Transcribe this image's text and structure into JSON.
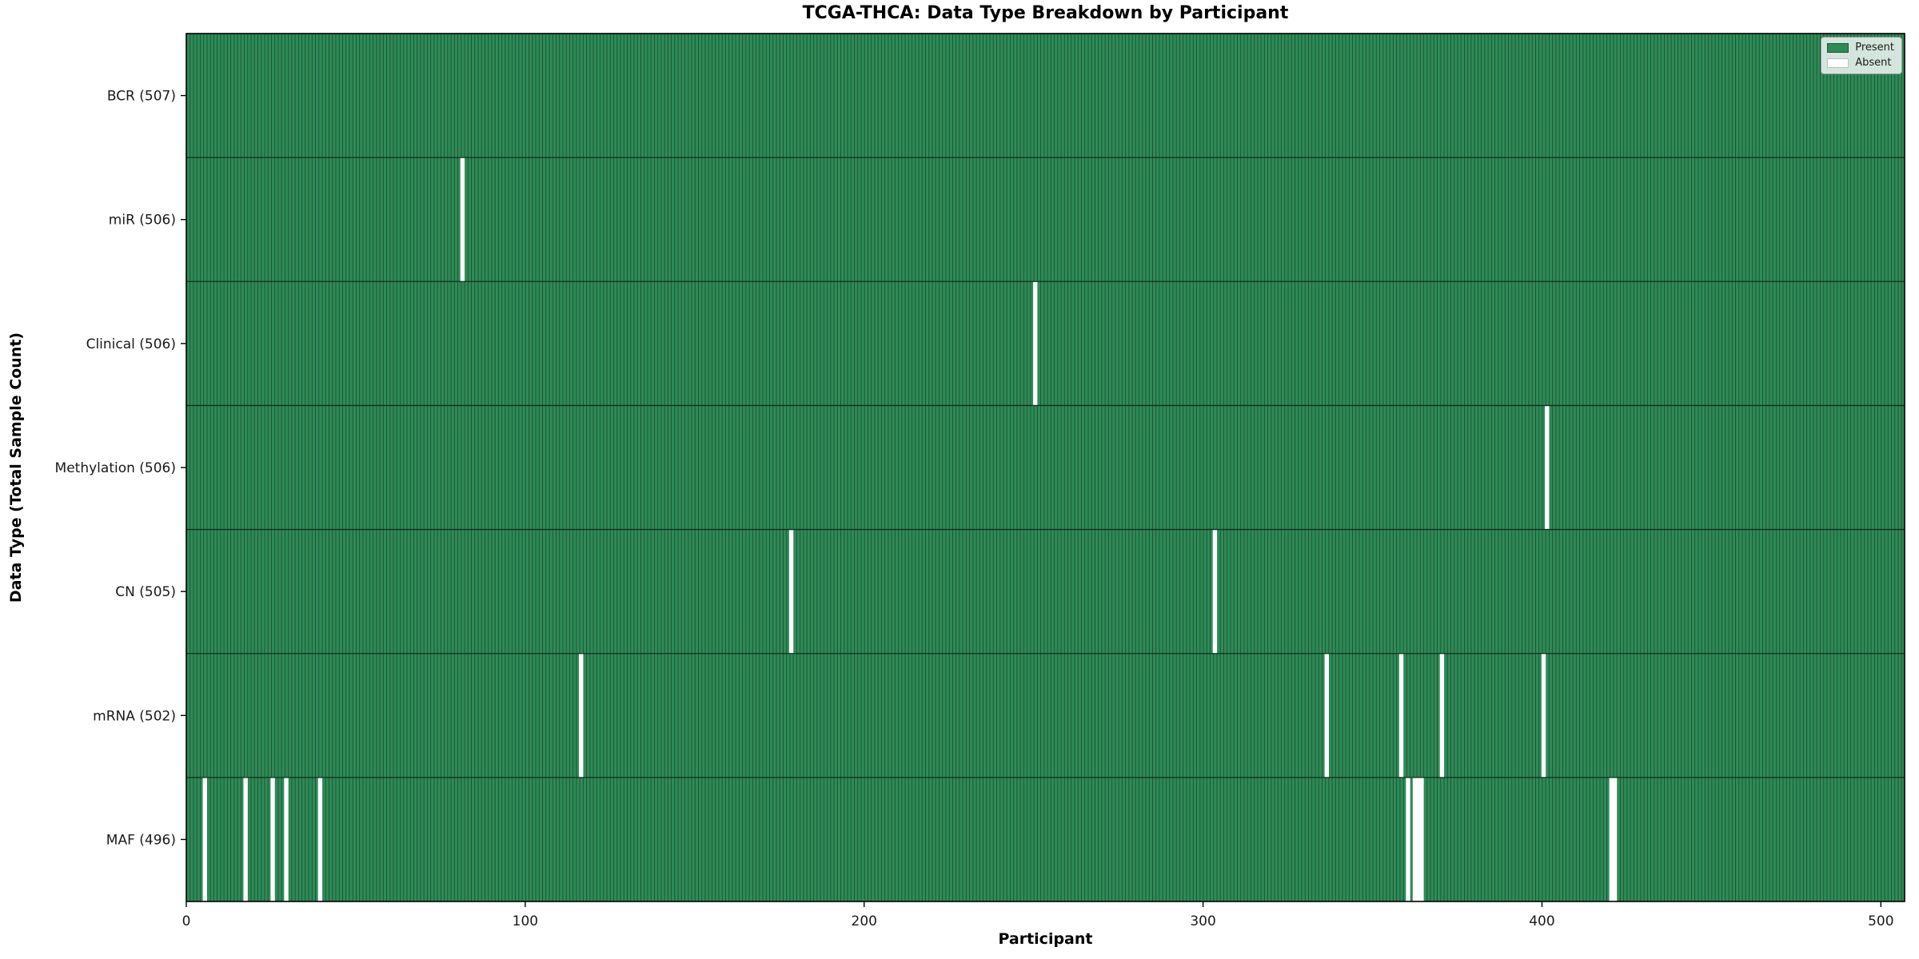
{
  "chart_data": {
    "type": "heatmap",
    "title": "TCGA-THCA: Data Type Breakdown by Participant",
    "xlabel": "Participant",
    "ylabel": "Data Type (Total Sample Count)",
    "n_participants": 507,
    "xlim": [
      0,
      507
    ],
    "x_ticks": [
      0,
      100,
      200,
      300,
      400,
      500
    ],
    "grid": false,
    "legend_position": "upper right",
    "legend": [
      {
        "label": "Present",
        "color": "#2e8b57"
      },
      {
        "label": "Absent",
        "color": "#ffffff"
      }
    ],
    "rows": [
      {
        "label": "BCR (507)",
        "data_type": "BCR",
        "total": 507,
        "absent_participants": []
      },
      {
        "label": "miR (506)",
        "data_type": "miR",
        "total": 506,
        "absent_participants": [
          81
        ]
      },
      {
        "label": "Clinical (506)",
        "data_type": "Clinical",
        "total": 506,
        "absent_participants": [
          250
        ]
      },
      {
        "label": "Methylation (506)",
        "data_type": "Methylation",
        "total": 506,
        "absent_participants": [
          401
        ]
      },
      {
        "label": "CN (505)",
        "data_type": "CN",
        "total": 505,
        "absent_participants": [
          178,
          303
        ]
      },
      {
        "label": "mRNA (502)",
        "data_type": "mRNA",
        "total": 502,
        "absent_participants": [
          116,
          336,
          358,
          370,
          400
        ]
      },
      {
        "label": "MAF (496)",
        "data_type": "MAF",
        "total": 496,
        "absent_participants": [
          5,
          17,
          25,
          29,
          39,
          360,
          362,
          363,
          364,
          420,
          421
        ]
      }
    ],
    "colors": {
      "present_fill": "#2e8b57",
      "bar_edge": "#1c5434",
      "row_separator": "#102e1d",
      "absent_fill": "#ffffff",
      "axis": "#000000"
    }
  }
}
